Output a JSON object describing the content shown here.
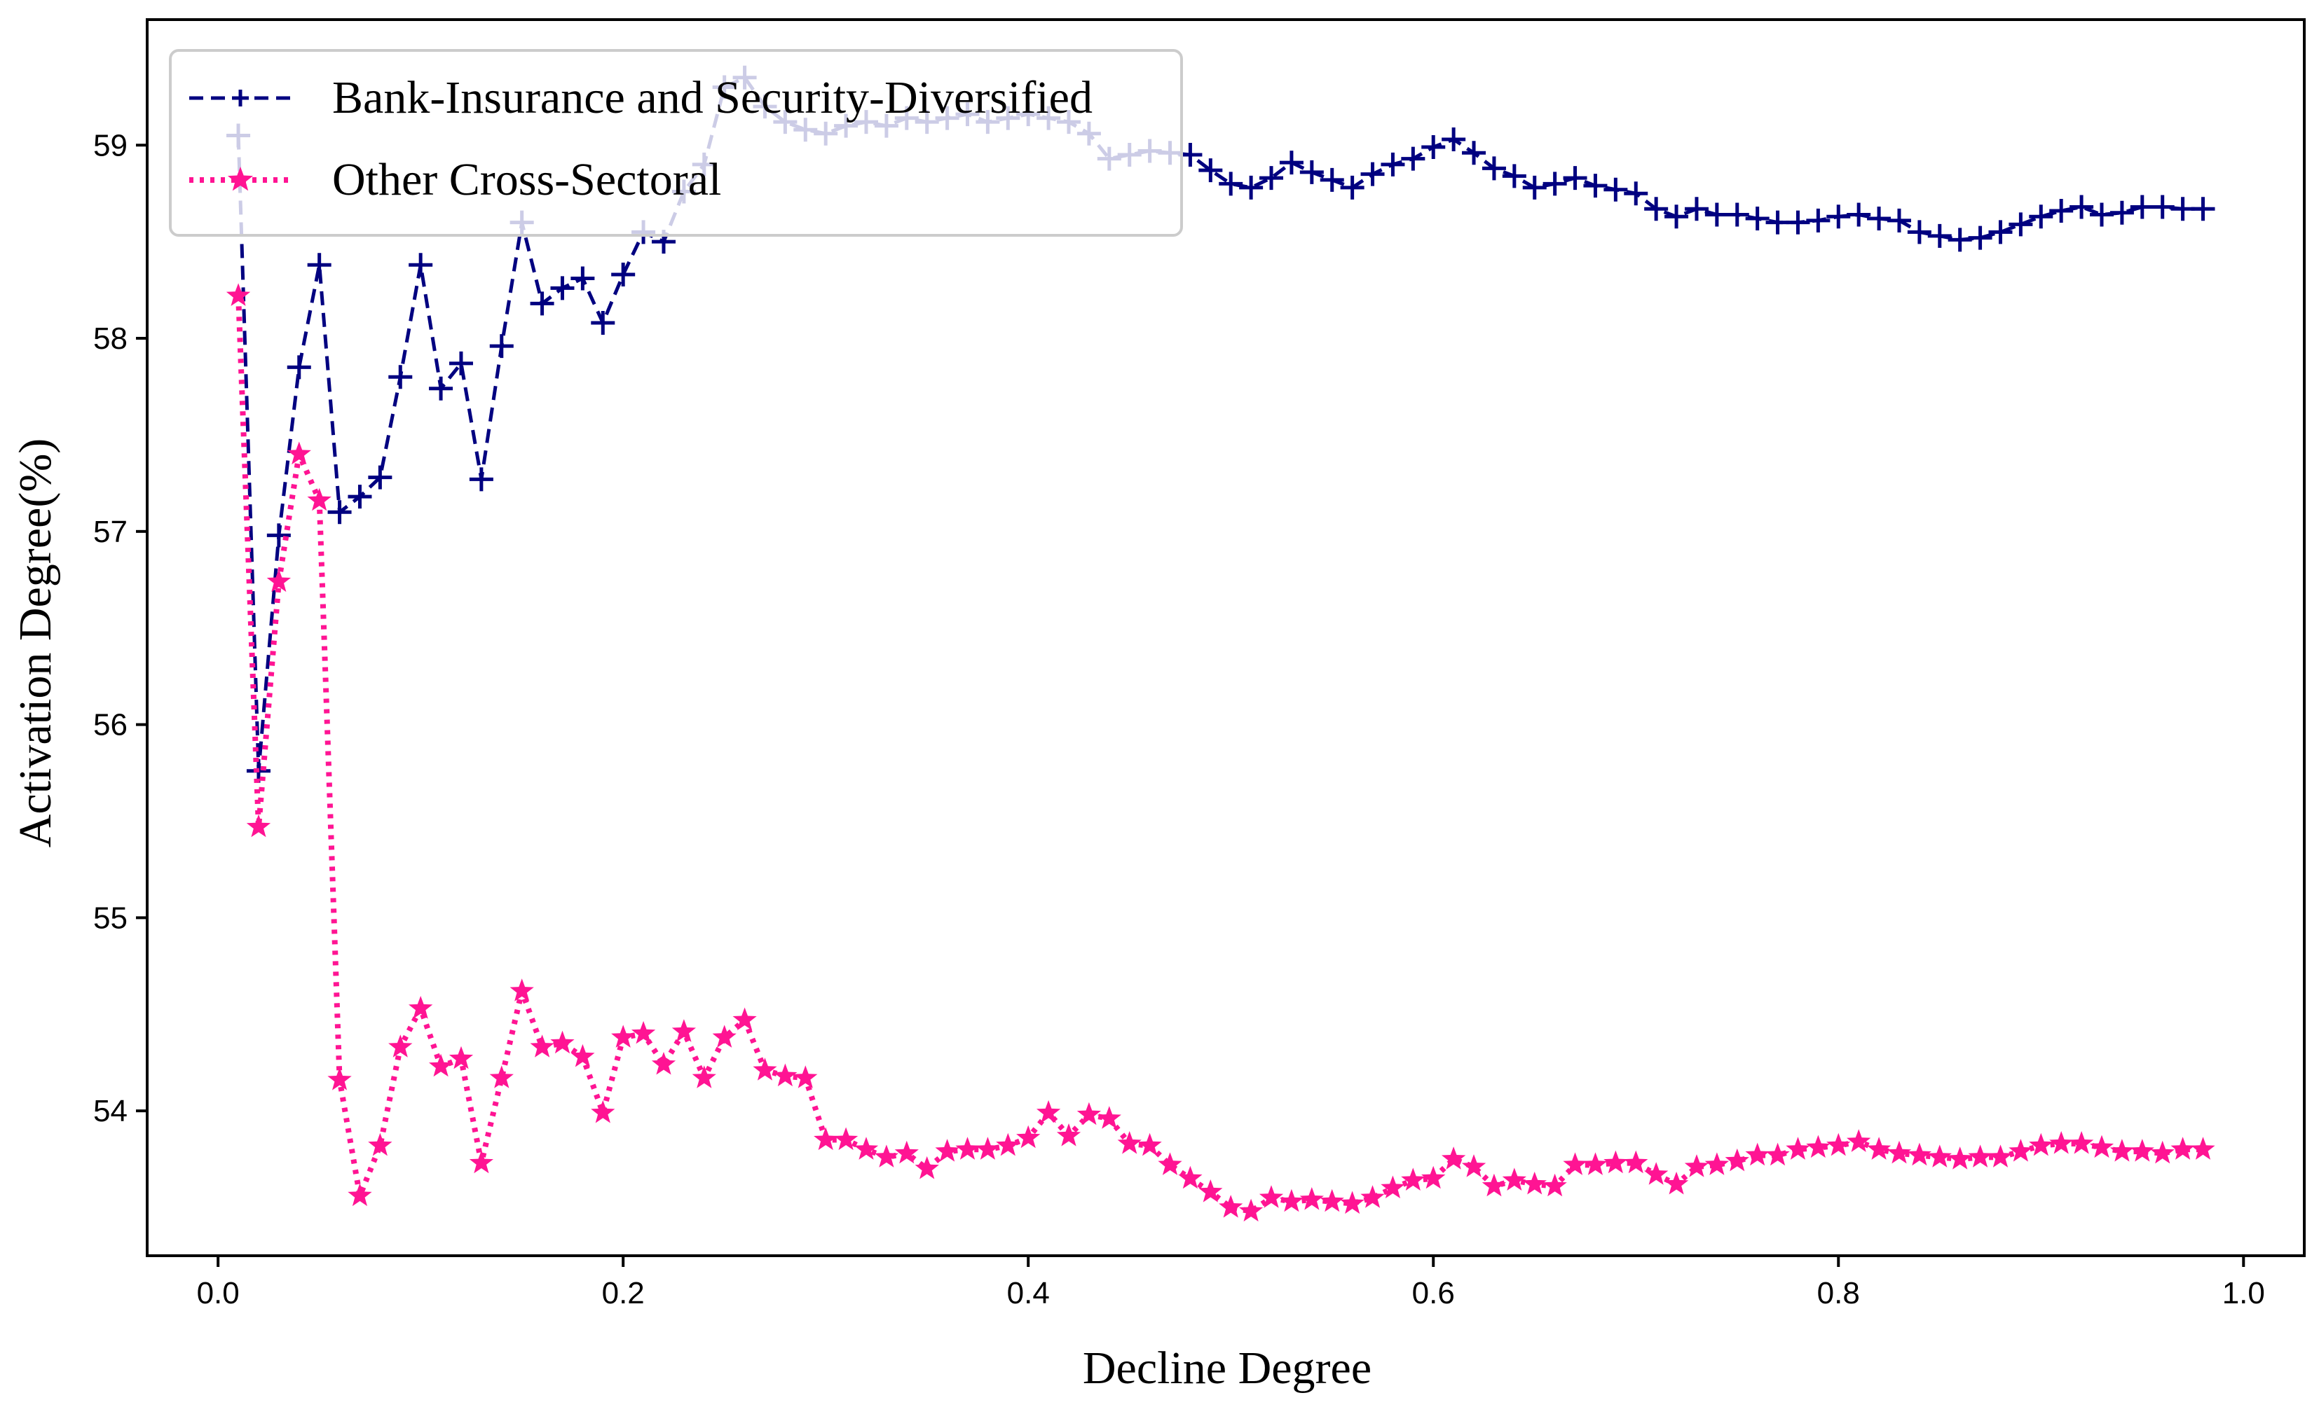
{
  "chart_data": {
    "type": "line",
    "title": "",
    "xlabel": "Decline Degree",
    "ylabel": "Activation Degree(%)",
    "xlim": [
      -0.035,
      1.03
    ],
    "ylim": [
      53.25,
      59.65
    ],
    "xticks": [
      0.0,
      0.2,
      0.4,
      0.6,
      0.8,
      1.0
    ],
    "xtick_labels": [
      "0.0",
      "0.2",
      "0.4",
      "0.6",
      "0.8",
      "1.0"
    ],
    "yticks": [
      54,
      55,
      56,
      57,
      58,
      59
    ],
    "ytick_labels": [
      "54",
      "55",
      "56",
      "57",
      "58",
      "59"
    ],
    "grid": false,
    "legend_position": "upper-left",
    "x": [
      0.01,
      0.02,
      0.03,
      0.04,
      0.05,
      0.06,
      0.07,
      0.08,
      0.09,
      0.1,
      0.11,
      0.12,
      0.13,
      0.14,
      0.15,
      0.16,
      0.17,
      0.18,
      0.19,
      0.2,
      0.21,
      0.22,
      0.23,
      0.24,
      0.25,
      0.26,
      0.27,
      0.28,
      0.29,
      0.3,
      0.31,
      0.32,
      0.33,
      0.34,
      0.35,
      0.36,
      0.37,
      0.38,
      0.39,
      0.4,
      0.41,
      0.42,
      0.43,
      0.44,
      0.45,
      0.46,
      0.47,
      0.48,
      0.49,
      0.5,
      0.51,
      0.52,
      0.53,
      0.54,
      0.55,
      0.56,
      0.57,
      0.58,
      0.59,
      0.6,
      0.61,
      0.62,
      0.63,
      0.64,
      0.65,
      0.66,
      0.67,
      0.68,
      0.69,
      0.7,
      0.71,
      0.72,
      0.73,
      0.74,
      0.75,
      0.76,
      0.77,
      0.78,
      0.79,
      0.8,
      0.81,
      0.82,
      0.83,
      0.84,
      0.85,
      0.86,
      0.87,
      0.88,
      0.89,
      0.9,
      0.91,
      0.92,
      0.93,
      0.94,
      0.95,
      0.96,
      0.97,
      0.98
    ],
    "series": [
      {
        "name": "Bank-Insurance and Security-Diversified",
        "color": "#000080",
        "linestyle": "dashed",
        "marker": "plus",
        "values": [
          59.05,
          55.76,
          56.98,
          57.85,
          58.38,
          57.1,
          57.18,
          57.28,
          57.8,
          58.38,
          57.74,
          57.87,
          57.27,
          57.96,
          58.6,
          58.18,
          58.26,
          58.31,
          58.08,
          58.33,
          58.55,
          58.5,
          58.76,
          58.9,
          59.3,
          59.35,
          59.2,
          59.12,
          59.08,
          59.06,
          59.1,
          59.12,
          59.1,
          59.14,
          59.12,
          59.14,
          59.16,
          59.12,
          59.14,
          59.16,
          59.14,
          59.12,
          59.06,
          58.93,
          58.95,
          58.97,
          58.96,
          58.95,
          58.87,
          58.8,
          58.78,
          58.83,
          58.91,
          58.86,
          58.82,
          58.78,
          58.85,
          58.9,
          58.93,
          58.99,
          59.03,
          58.96,
          58.88,
          58.84,
          58.78,
          58.8,
          58.83,
          58.79,
          58.77,
          58.75,
          58.67,
          58.63,
          58.67,
          58.64,
          58.64,
          58.62,
          58.6,
          58.6,
          58.61,
          58.63,
          58.64,
          58.62,
          58.61,
          58.55,
          58.53,
          58.51,
          58.52,
          58.55,
          58.59,
          58.63,
          58.66,
          58.68,
          58.64,
          58.65,
          58.68,
          58.68,
          58.67,
          58.67
        ]
      },
      {
        "name": "Other Cross-Sectoral",
        "color": "#ff1493",
        "linestyle": "dotted",
        "marker": "star",
        "values": [
          58.22,
          55.47,
          56.74,
          57.4,
          57.16,
          54.16,
          53.56,
          53.82,
          54.33,
          54.53,
          54.23,
          54.27,
          53.73,
          54.17,
          54.62,
          54.33,
          54.35,
          54.28,
          53.99,
          54.38,
          54.4,
          54.24,
          54.41,
          54.17,
          54.38,
          54.47,
          54.21,
          54.18,
          54.17,
          53.85,
          53.85,
          53.8,
          53.76,
          53.78,
          53.7,
          53.79,
          53.8,
          53.8,
          53.82,
          53.86,
          53.99,
          53.87,
          53.98,
          53.96,
          53.83,
          53.82,
          53.72,
          53.65,
          53.58,
          53.5,
          53.48,
          53.55,
          53.53,
          53.54,
          53.53,
          53.52,
          53.55,
          53.6,
          53.64,
          53.65,
          53.75,
          53.71,
          53.61,
          53.64,
          53.62,
          53.61,
          53.72,
          53.72,
          53.73,
          53.73,
          53.67,
          53.62,
          53.71,
          53.72,
          53.74,
          53.77,
          53.77,
          53.8,
          53.81,
          53.82,
          53.84,
          53.8,
          53.78,
          53.77,
          53.76,
          53.75,
          53.76,
          53.76,
          53.79,
          53.82,
          53.83,
          53.83,
          53.81,
          53.79,
          53.79,
          53.78,
          53.8,
          53.8
        ]
      }
    ]
  }
}
